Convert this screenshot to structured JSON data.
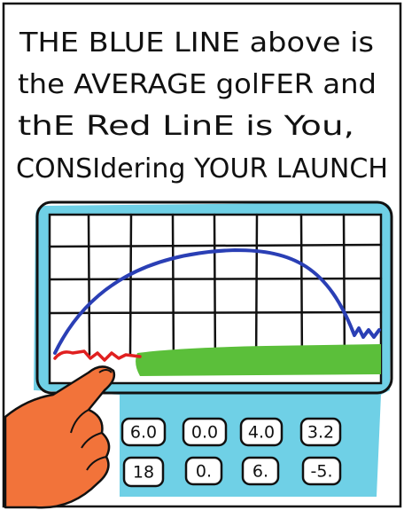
{
  "caption": {
    "lines": [
      "THE BLUE LINE above is",
      "the AVERAGE golFER and",
      "thE Red LinE is You,",
      "CONSIdering YOUR LAUNCH"
    ]
  },
  "buttons": {
    "rows": [
      [
        "6.0",
        "0.0",
        "4.0",
        "3.2"
      ],
      [
        "18",
        "0.",
        "6.",
        "-5."
      ]
    ]
  }
}
